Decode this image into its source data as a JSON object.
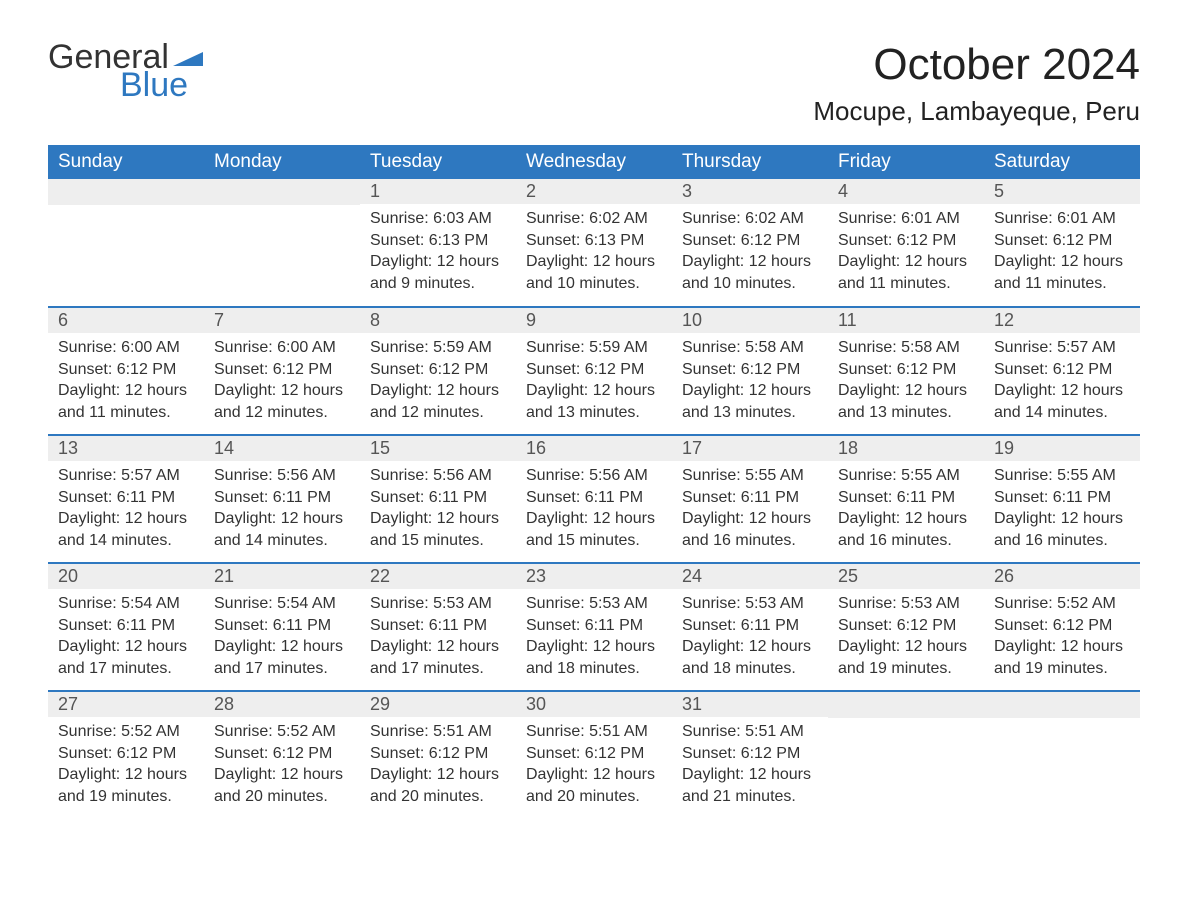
{
  "logo": {
    "word1": "General",
    "word2": "Blue"
  },
  "title": "October 2024",
  "location": "Mocupe, Lambayeque, Peru",
  "colors": {
    "header_bg": "#2e78c0",
    "header_text": "#ffffff",
    "daynum_bg": "#eeeeee",
    "row_border": "#2e78c0",
    "body_text": "#333333",
    "logo_blue": "#2e78c0"
  },
  "day_headers": [
    "Sunday",
    "Monday",
    "Tuesday",
    "Wednesday",
    "Thursday",
    "Friday",
    "Saturday"
  ],
  "weeks": [
    [
      null,
      null,
      {
        "n": "1",
        "sunrise": "Sunrise: 6:03 AM",
        "sunset": "Sunset: 6:13 PM",
        "day1": "Daylight: 12 hours",
        "day2": "and 9 minutes."
      },
      {
        "n": "2",
        "sunrise": "Sunrise: 6:02 AM",
        "sunset": "Sunset: 6:13 PM",
        "day1": "Daylight: 12 hours",
        "day2": "and 10 minutes."
      },
      {
        "n": "3",
        "sunrise": "Sunrise: 6:02 AM",
        "sunset": "Sunset: 6:12 PM",
        "day1": "Daylight: 12 hours",
        "day2": "and 10 minutes."
      },
      {
        "n": "4",
        "sunrise": "Sunrise: 6:01 AM",
        "sunset": "Sunset: 6:12 PM",
        "day1": "Daylight: 12 hours",
        "day2": "and 11 minutes."
      },
      {
        "n": "5",
        "sunrise": "Sunrise: 6:01 AM",
        "sunset": "Sunset: 6:12 PM",
        "day1": "Daylight: 12 hours",
        "day2": "and 11 minutes."
      }
    ],
    [
      {
        "n": "6",
        "sunrise": "Sunrise: 6:00 AM",
        "sunset": "Sunset: 6:12 PM",
        "day1": "Daylight: 12 hours",
        "day2": "and 11 minutes."
      },
      {
        "n": "7",
        "sunrise": "Sunrise: 6:00 AM",
        "sunset": "Sunset: 6:12 PM",
        "day1": "Daylight: 12 hours",
        "day2": "and 12 minutes."
      },
      {
        "n": "8",
        "sunrise": "Sunrise: 5:59 AM",
        "sunset": "Sunset: 6:12 PM",
        "day1": "Daylight: 12 hours",
        "day2": "and 12 minutes."
      },
      {
        "n": "9",
        "sunrise": "Sunrise: 5:59 AM",
        "sunset": "Sunset: 6:12 PM",
        "day1": "Daylight: 12 hours",
        "day2": "and 13 minutes."
      },
      {
        "n": "10",
        "sunrise": "Sunrise: 5:58 AM",
        "sunset": "Sunset: 6:12 PM",
        "day1": "Daylight: 12 hours",
        "day2": "and 13 minutes."
      },
      {
        "n": "11",
        "sunrise": "Sunrise: 5:58 AM",
        "sunset": "Sunset: 6:12 PM",
        "day1": "Daylight: 12 hours",
        "day2": "and 13 minutes."
      },
      {
        "n": "12",
        "sunrise": "Sunrise: 5:57 AM",
        "sunset": "Sunset: 6:12 PM",
        "day1": "Daylight: 12 hours",
        "day2": "and 14 minutes."
      }
    ],
    [
      {
        "n": "13",
        "sunrise": "Sunrise: 5:57 AM",
        "sunset": "Sunset: 6:11 PM",
        "day1": "Daylight: 12 hours",
        "day2": "and 14 minutes."
      },
      {
        "n": "14",
        "sunrise": "Sunrise: 5:56 AM",
        "sunset": "Sunset: 6:11 PM",
        "day1": "Daylight: 12 hours",
        "day2": "and 14 minutes."
      },
      {
        "n": "15",
        "sunrise": "Sunrise: 5:56 AM",
        "sunset": "Sunset: 6:11 PM",
        "day1": "Daylight: 12 hours",
        "day2": "and 15 minutes."
      },
      {
        "n": "16",
        "sunrise": "Sunrise: 5:56 AM",
        "sunset": "Sunset: 6:11 PM",
        "day1": "Daylight: 12 hours",
        "day2": "and 15 minutes."
      },
      {
        "n": "17",
        "sunrise": "Sunrise: 5:55 AM",
        "sunset": "Sunset: 6:11 PM",
        "day1": "Daylight: 12 hours",
        "day2": "and 16 minutes."
      },
      {
        "n": "18",
        "sunrise": "Sunrise: 5:55 AM",
        "sunset": "Sunset: 6:11 PM",
        "day1": "Daylight: 12 hours",
        "day2": "and 16 minutes."
      },
      {
        "n": "19",
        "sunrise": "Sunrise: 5:55 AM",
        "sunset": "Sunset: 6:11 PM",
        "day1": "Daylight: 12 hours",
        "day2": "and 16 minutes."
      }
    ],
    [
      {
        "n": "20",
        "sunrise": "Sunrise: 5:54 AM",
        "sunset": "Sunset: 6:11 PM",
        "day1": "Daylight: 12 hours",
        "day2": "and 17 minutes."
      },
      {
        "n": "21",
        "sunrise": "Sunrise: 5:54 AM",
        "sunset": "Sunset: 6:11 PM",
        "day1": "Daylight: 12 hours",
        "day2": "and 17 minutes."
      },
      {
        "n": "22",
        "sunrise": "Sunrise: 5:53 AM",
        "sunset": "Sunset: 6:11 PM",
        "day1": "Daylight: 12 hours",
        "day2": "and 17 minutes."
      },
      {
        "n": "23",
        "sunrise": "Sunrise: 5:53 AM",
        "sunset": "Sunset: 6:11 PM",
        "day1": "Daylight: 12 hours",
        "day2": "and 18 minutes."
      },
      {
        "n": "24",
        "sunrise": "Sunrise: 5:53 AM",
        "sunset": "Sunset: 6:11 PM",
        "day1": "Daylight: 12 hours",
        "day2": "and 18 minutes."
      },
      {
        "n": "25",
        "sunrise": "Sunrise: 5:53 AM",
        "sunset": "Sunset: 6:12 PM",
        "day1": "Daylight: 12 hours",
        "day2": "and 19 minutes."
      },
      {
        "n": "26",
        "sunrise": "Sunrise: 5:52 AM",
        "sunset": "Sunset: 6:12 PM",
        "day1": "Daylight: 12 hours",
        "day2": "and 19 minutes."
      }
    ],
    [
      {
        "n": "27",
        "sunrise": "Sunrise: 5:52 AM",
        "sunset": "Sunset: 6:12 PM",
        "day1": "Daylight: 12 hours",
        "day2": "and 19 minutes."
      },
      {
        "n": "28",
        "sunrise": "Sunrise: 5:52 AM",
        "sunset": "Sunset: 6:12 PM",
        "day1": "Daylight: 12 hours",
        "day2": "and 20 minutes."
      },
      {
        "n": "29",
        "sunrise": "Sunrise: 5:51 AM",
        "sunset": "Sunset: 6:12 PM",
        "day1": "Daylight: 12 hours",
        "day2": "and 20 minutes."
      },
      {
        "n": "30",
        "sunrise": "Sunrise: 5:51 AM",
        "sunset": "Sunset: 6:12 PM",
        "day1": "Daylight: 12 hours",
        "day2": "and 20 minutes."
      },
      {
        "n": "31",
        "sunrise": "Sunrise: 5:51 AM",
        "sunset": "Sunset: 6:12 PM",
        "day1": "Daylight: 12 hours",
        "day2": "and 21 minutes."
      },
      null,
      null
    ]
  ]
}
